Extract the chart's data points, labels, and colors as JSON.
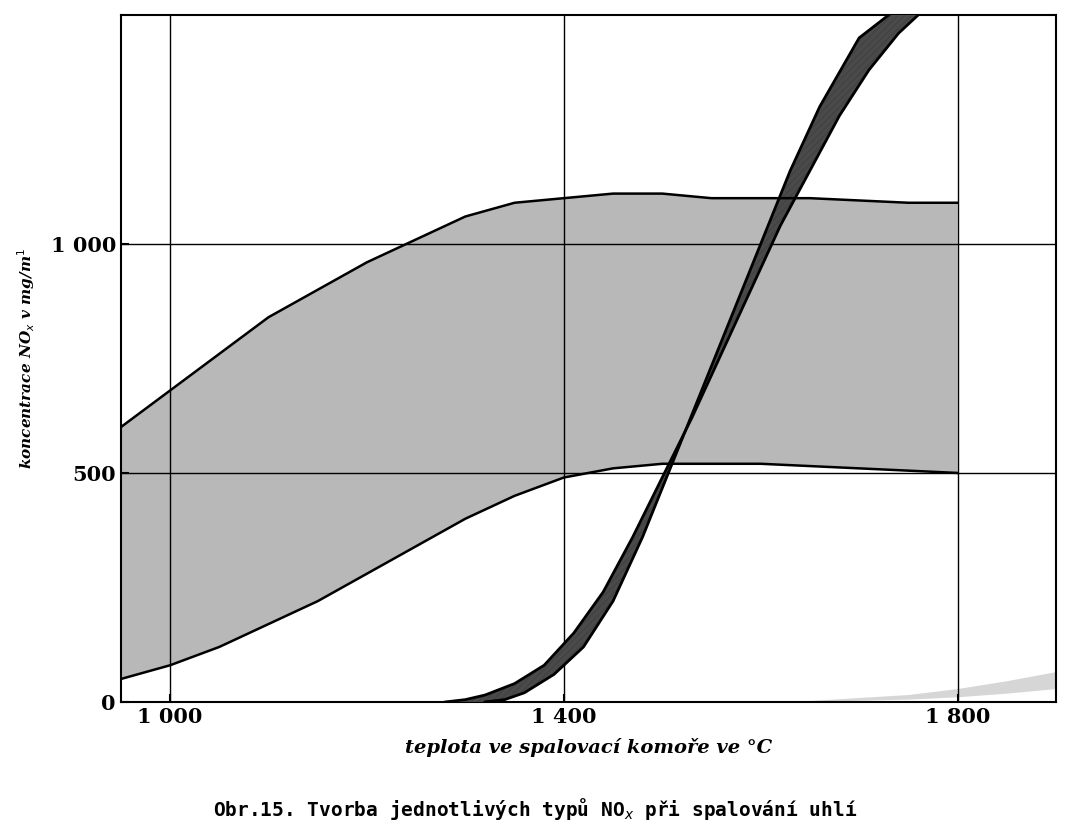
{
  "xlabel": "teplota ve spalovací komoře ve °C",
  "ylabel_top": "mg/m¹",
  "ylabel_mid": "NOₓ v",
  "ylabel_bot": "koncentrace",
  "xlim": [
    950,
    1900
  ],
  "ylim": [
    0,
    1500
  ],
  "xticks": [
    1000,
    1400,
    1800
  ],
  "xtick_labels": [
    "1 000",
    "1 400",
    "1 800"
  ],
  "yticks": [
    0,
    500,
    1000
  ],
  "ytick_labels": [
    "0",
    "500",
    "1 000"
  ],
  "fuel_nox_upper": [
    [
      950,
      600
    ],
    [
      1000,
      680
    ],
    [
      1050,
      760
    ],
    [
      1100,
      840
    ],
    [
      1150,
      900
    ],
    [
      1200,
      960
    ],
    [
      1250,
      1010
    ],
    [
      1300,
      1060
    ],
    [
      1350,
      1090
    ],
    [
      1400,
      1100
    ],
    [
      1450,
      1110
    ],
    [
      1500,
      1110
    ],
    [
      1550,
      1100
    ],
    [
      1600,
      1100
    ],
    [
      1650,
      1100
    ],
    [
      1700,
      1095
    ],
    [
      1750,
      1090
    ],
    [
      1800,
      1090
    ]
  ],
  "fuel_nox_lower": [
    [
      950,
      50
    ],
    [
      1000,
      80
    ],
    [
      1050,
      120
    ],
    [
      1100,
      170
    ],
    [
      1150,
      220
    ],
    [
      1200,
      280
    ],
    [
      1250,
      340
    ],
    [
      1300,
      400
    ],
    [
      1350,
      450
    ],
    [
      1400,
      490
    ],
    [
      1450,
      510
    ],
    [
      1500,
      520
    ],
    [
      1550,
      520
    ],
    [
      1600,
      520
    ],
    [
      1650,
      515
    ],
    [
      1700,
      510
    ],
    [
      1750,
      505
    ],
    [
      1800,
      500
    ]
  ],
  "thermal_nox_lower": [
    [
      1280,
      0
    ],
    [
      1300,
      5
    ],
    [
      1320,
      15
    ],
    [
      1350,
      40
    ],
    [
      1380,
      80
    ],
    [
      1410,
      150
    ],
    [
      1440,
      240
    ],
    [
      1470,
      360
    ],
    [
      1500,
      490
    ],
    [
      1530,
      620
    ],
    [
      1560,
      760
    ],
    [
      1590,
      900
    ],
    [
      1620,
      1040
    ],
    [
      1650,
      1160
    ],
    [
      1680,
      1280
    ],
    [
      1710,
      1380
    ],
    [
      1740,
      1460
    ],
    [
      1760,
      1500
    ]
  ],
  "thermal_nox_upper": [
    [
      1320,
      0
    ],
    [
      1340,
      5
    ],
    [
      1360,
      20
    ],
    [
      1390,
      60
    ],
    [
      1420,
      120
    ],
    [
      1450,
      220
    ],
    [
      1480,
      360
    ],
    [
      1510,
      520
    ],
    [
      1540,
      680
    ],
    [
      1570,
      840
    ],
    [
      1600,
      1000
    ],
    [
      1630,
      1160
    ],
    [
      1660,
      1300
    ],
    [
      1700,
      1450
    ],
    [
      1730,
      1500
    ]
  ],
  "prompt_nox_lower": [
    [
      1580,
      0
    ],
    [
      1650,
      0
    ],
    [
      1750,
      5
    ],
    [
      1800,
      10
    ],
    [
      1850,
      18
    ],
    [
      1900,
      28
    ]
  ],
  "prompt_nox_upper": [
    [
      1580,
      0
    ],
    [
      1650,
      2
    ],
    [
      1750,
      15
    ],
    [
      1800,
      28
    ],
    [
      1850,
      45
    ],
    [
      1900,
      65
    ]
  ],
  "background_color": "#ffffff",
  "title": "Obr.15. Tvorba jednotlivých typů NO$_x$ při spalování uhlí"
}
